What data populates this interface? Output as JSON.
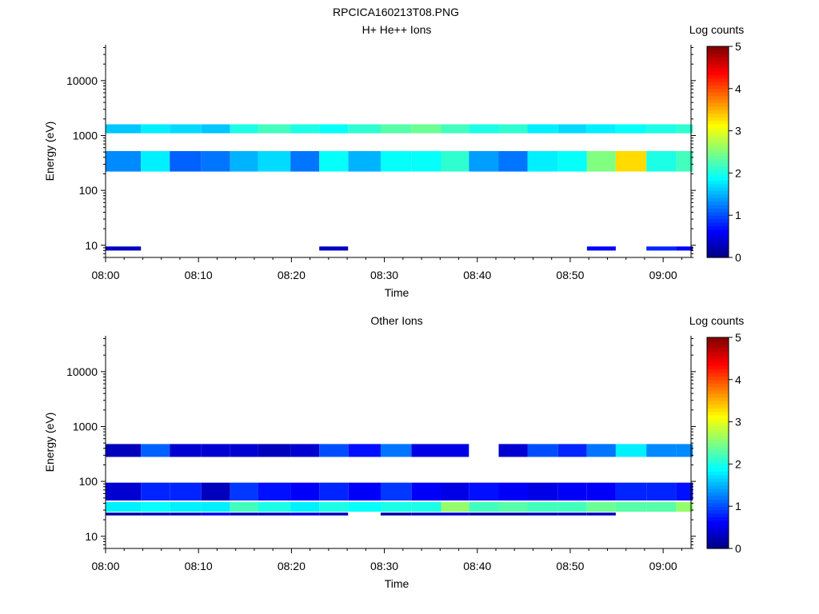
{
  "page": {
    "title": "RPCICA160213T08.PNG"
  },
  "colors": {
    "background": "#ffffff",
    "axis": "#000000",
    "colormap": "jet"
  },
  "chart_data": [
    {
      "type": "heatmap",
      "title": "H+ He++ Ions",
      "xlabel": "Time",
      "ylabel": "Energy (eV)",
      "x_ticks": [
        "08:00",
        "08:10",
        "08:20",
        "08:30",
        "08:40",
        "08:50",
        "09:00"
      ],
      "x_range": [
        "08:00",
        "09:03"
      ],
      "y_scale": "log",
      "y_ticks": [
        10,
        100,
        1000,
        10000
      ],
      "y_tick_labels": [
        "10",
        "100",
        "1000",
        "10000"
      ],
      "y_range": [
        6,
        45000
      ],
      "colorbar": {
        "label": "Log counts",
        "range": [
          0,
          5
        ],
        "ticks": [
          "0",
          "1",
          "2",
          "3",
          "4",
          "5"
        ]
      },
      "time_bins_start_min": [
        0.0,
        3.8,
        6.9,
        10.3,
        13.4,
        16.4,
        19.9,
        23.0,
        26.1,
        29.6,
        32.9,
        36.1,
        39.1,
        42.3,
        45.4,
        48.7,
        51.8,
        54.9,
        58.2,
        61.4
      ],
      "time_bins_end_min": [
        3.8,
        6.9,
        10.3,
        13.4,
        16.4,
        19.9,
        23.0,
        26.1,
        29.6,
        32.9,
        36.1,
        39.1,
        42.3,
        45.4,
        48.7,
        51.8,
        54.9,
        58.2,
        61.4,
        63.2
      ],
      "bands": [
        {
          "e_low": 1100,
          "e_high": 1600,
          "values": [
            1.6,
            1.8,
            1.7,
            1.6,
            2.0,
            2.2,
            2.0,
            1.9,
            2.1,
            2.3,
            2.4,
            2.2,
            2.0,
            2.1,
            1.8,
            1.7,
            1.8,
            1.9,
            2.0,
            2.1
          ]
        },
        {
          "e_low": 220,
          "e_high": 520,
          "values": [
            1.3,
            1.8,
            1.1,
            1.2,
            1.5,
            1.7,
            1.2,
            1.9,
            1.5,
            1.9,
            1.9,
            2.1,
            1.4,
            1.2,
            1.8,
            1.9,
            2.5,
            3.3,
            2.0,
            2.2
          ]
        },
        {
          "e_low": 8,
          "e_high": 9.5,
          "values": [
            0.3,
            null,
            null,
            null,
            null,
            null,
            null,
            0.3,
            null,
            null,
            null,
            null,
            null,
            null,
            null,
            null,
            0.6,
            null,
            0.8,
            0.6
          ]
        }
      ]
    },
    {
      "type": "heatmap",
      "title": "Other Ions",
      "xlabel": "Time",
      "ylabel": "Energy (eV)",
      "x_ticks": [
        "08:00",
        "08:10",
        "08:20",
        "08:30",
        "08:40",
        "08:50",
        "09:00"
      ],
      "x_range": [
        "08:00",
        "09:03"
      ],
      "y_scale": "log",
      "y_ticks": [
        10,
        100,
        1000,
        10000
      ],
      "y_tick_labels": [
        "10",
        "100",
        "1000",
        "10000"
      ],
      "y_range": [
        6,
        45000
      ],
      "colorbar": {
        "label": "Log counts",
        "range": [
          0,
          5
        ],
        "ticks": [
          "0",
          "1",
          "2",
          "3",
          "4",
          "5"
        ]
      },
      "time_bins_start_min": [
        0.0,
        3.8,
        6.9,
        10.3,
        13.4,
        16.4,
        19.9,
        23.0,
        26.1,
        29.6,
        32.9,
        36.1,
        39.1,
        42.3,
        45.4,
        48.7,
        51.8,
        54.9,
        58.2,
        61.4
      ],
      "time_bins_end_min": [
        3.8,
        6.9,
        10.3,
        13.4,
        16.4,
        19.9,
        23.0,
        26.1,
        29.6,
        32.9,
        36.1,
        39.1,
        42.3,
        45.4,
        48.7,
        51.8,
        54.9,
        58.2,
        61.4,
        63.2
      ],
      "bands": [
        {
          "e_low": 28,
          "e_high": 42,
          "values": [
            1.8,
            1.9,
            1.8,
            1.8,
            2.2,
            2.0,
            1.8,
            2.0,
            1.9,
            2.0,
            2.0,
            2.6,
            2.2,
            2.3,
            2.2,
            2.2,
            2.4,
            2.3,
            2.3,
            2.6
          ]
        },
        {
          "e_low": 45,
          "e_high": 95,
          "values": [
            0.4,
            0.8,
            0.8,
            0.3,
            0.9,
            0.7,
            0.6,
            0.8,
            0.6,
            0.9,
            0.6,
            0.5,
            0.7,
            0.6,
            0.5,
            0.6,
            0.6,
            0.8,
            0.8,
            0.7
          ]
        },
        {
          "e_low": 24,
          "e_high": 27,
          "values": [
            0.2,
            0.3,
            0.3,
            0.6,
            0.3,
            0.3,
            0.5,
            0.3,
            null,
            0.2,
            0.3,
            0.4,
            0.2,
            0.2,
            0.3,
            0.3,
            0.3,
            null,
            null,
            null
          ]
        },
        {
          "e_low": 280,
          "e_high": 480,
          "values": [
            0.3,
            1.1,
            0.4,
            0.4,
            0.4,
            0.3,
            0.4,
            1.0,
            0.7,
            1.2,
            0.5,
            0.5,
            null,
            0.4,
            1.0,
            0.8,
            1.2,
            1.8,
            1.3,
            1.3
          ]
        }
      ]
    }
  ]
}
